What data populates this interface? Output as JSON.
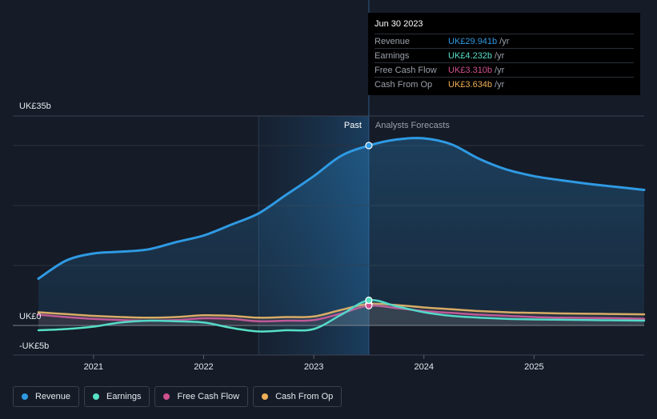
{
  "tooltip": {
    "date": "Jun 30 2023",
    "rows": [
      {
        "label": "Revenue",
        "value": "UK£29.941b",
        "unit": "/yr",
        "color": "#2f9ae3"
      },
      {
        "label": "Earnings",
        "value": "UK£4.232b",
        "unit": "/yr",
        "color": "#57e0c6"
      },
      {
        "label": "Free Cash Flow",
        "value": "UK£3.310b",
        "unit": "/yr",
        "color": "#d0528f"
      },
      {
        "label": "Cash From Op",
        "value": "UK£3.634b",
        "unit": "/yr",
        "color": "#eeae57"
      }
    ]
  },
  "legend": [
    {
      "label": "Revenue",
      "color": "#2f9ae3"
    },
    {
      "label": "Earnings",
      "color": "#57e0c6"
    },
    {
      "label": "Free Cash Flow",
      "color": "#d0528f"
    },
    {
      "label": "Cash From Op",
      "color": "#eeae57"
    }
  ],
  "chart_data": {
    "type": "line",
    "y_ticks": [
      {
        "value": 35,
        "label": "UK£35b"
      },
      {
        "value": 0,
        "label": "UK£0"
      },
      {
        "value": -5,
        "label": "-UK£5b"
      }
    ],
    "ylim": [
      -5,
      35
    ],
    "xlim": [
      2020.5,
      2026.0
    ],
    "x_ticks": [
      {
        "value": 2021,
        "label": "2021"
      },
      {
        "value": 2022,
        "label": "2022"
      },
      {
        "value": 2023,
        "label": "2023"
      },
      {
        "value": 2024,
        "label": "2024"
      },
      {
        "value": 2025,
        "label": "2025"
      }
    ],
    "regions": {
      "past_label": "Past",
      "forecast_label": "Analysts Forecasts",
      "past_start": 2022.5,
      "divider": 2023.5
    },
    "marker_x": 2023.5,
    "series": [
      {
        "name": "Revenue",
        "color": "#2f9ae3",
        "fill": true,
        "points": [
          [
            2020.5,
            7.8
          ],
          [
            2020.75,
            10.8
          ],
          [
            2021.0,
            12.0
          ],
          [
            2021.25,
            12.3
          ],
          [
            2021.5,
            12.7
          ],
          [
            2021.75,
            13.9
          ],
          [
            2022.0,
            15.0
          ],
          [
            2022.25,
            16.8
          ],
          [
            2022.5,
            18.7
          ],
          [
            2022.75,
            21.8
          ],
          [
            2023.0,
            24.9
          ],
          [
            2023.25,
            28.3
          ],
          [
            2023.5,
            30.0
          ],
          [
            2023.75,
            31.0
          ],
          [
            2024.0,
            31.2
          ],
          [
            2024.25,
            30.2
          ],
          [
            2024.5,
            27.8
          ],
          [
            2024.75,
            26.0
          ],
          [
            2025.0,
            24.9
          ],
          [
            2025.25,
            24.2
          ],
          [
            2025.5,
            23.6
          ],
          [
            2025.75,
            23.1
          ],
          [
            2026.0,
            22.6
          ]
        ]
      },
      {
        "name": "Earnings",
        "color": "#57e0c6",
        "fill": false,
        "points": [
          [
            2020.5,
            -0.8
          ],
          [
            2020.75,
            -0.6
          ],
          [
            2021.0,
            -0.2
          ],
          [
            2021.25,
            0.5
          ],
          [
            2021.5,
            0.8
          ],
          [
            2021.75,
            0.7
          ],
          [
            2022.0,
            0.5
          ],
          [
            2022.25,
            -0.4
          ],
          [
            2022.5,
            -1.0
          ],
          [
            2022.75,
            -0.8
          ],
          [
            2023.0,
            -0.6
          ],
          [
            2023.25,
            1.8
          ],
          [
            2023.5,
            4.2
          ],
          [
            2023.75,
            3.2
          ],
          [
            2024.0,
            2.2
          ],
          [
            2024.25,
            1.6
          ],
          [
            2024.5,
            1.3
          ],
          [
            2024.75,
            1.1
          ],
          [
            2025.0,
            1.0
          ],
          [
            2025.25,
            0.95
          ],
          [
            2025.5,
            0.9
          ],
          [
            2025.75,
            0.85
          ],
          [
            2026.0,
            0.8
          ]
        ]
      },
      {
        "name": "Free Cash Flow",
        "color": "#d0528f",
        "fill": false,
        "points": [
          [
            2020.5,
            1.8
          ],
          [
            2020.75,
            1.4
          ],
          [
            2021.0,
            1.1
          ],
          [
            2021.25,
            0.9
          ],
          [
            2021.5,
            0.8
          ],
          [
            2021.75,
            0.9
          ],
          [
            2022.0,
            1.2
          ],
          [
            2022.25,
            1.1
          ],
          [
            2022.5,
            0.7
          ],
          [
            2022.75,
            0.8
          ],
          [
            2023.0,
            0.9
          ],
          [
            2023.25,
            2.0
          ],
          [
            2023.5,
            3.3
          ],
          [
            2023.75,
            2.9
          ],
          [
            2024.0,
            2.4
          ],
          [
            2024.25,
            2.1
          ],
          [
            2024.5,
            1.8
          ],
          [
            2024.75,
            1.6
          ],
          [
            2025.0,
            1.4
          ],
          [
            2025.25,
            1.3
          ],
          [
            2025.5,
            1.25
          ],
          [
            2025.75,
            1.2
          ],
          [
            2026.0,
            1.1
          ]
        ]
      },
      {
        "name": "Cash From Op",
        "color": "#eeae57",
        "fill": false,
        "points": [
          [
            2020.5,
            2.2
          ],
          [
            2020.75,
            1.9
          ],
          [
            2021.0,
            1.6
          ],
          [
            2021.25,
            1.4
          ],
          [
            2021.5,
            1.3
          ],
          [
            2021.75,
            1.4
          ],
          [
            2022.0,
            1.7
          ],
          [
            2022.25,
            1.6
          ],
          [
            2022.5,
            1.3
          ],
          [
            2022.75,
            1.4
          ],
          [
            2023.0,
            1.5
          ],
          [
            2023.25,
            2.6
          ],
          [
            2023.5,
            3.6
          ],
          [
            2023.75,
            3.4
          ],
          [
            2024.0,
            3.0
          ],
          [
            2024.25,
            2.7
          ],
          [
            2024.5,
            2.4
          ],
          [
            2024.75,
            2.2
          ],
          [
            2025.0,
            2.1
          ],
          [
            2025.25,
            2.0
          ],
          [
            2025.5,
            1.95
          ],
          [
            2025.75,
            1.9
          ],
          [
            2026.0,
            1.85
          ]
        ]
      }
    ]
  }
}
